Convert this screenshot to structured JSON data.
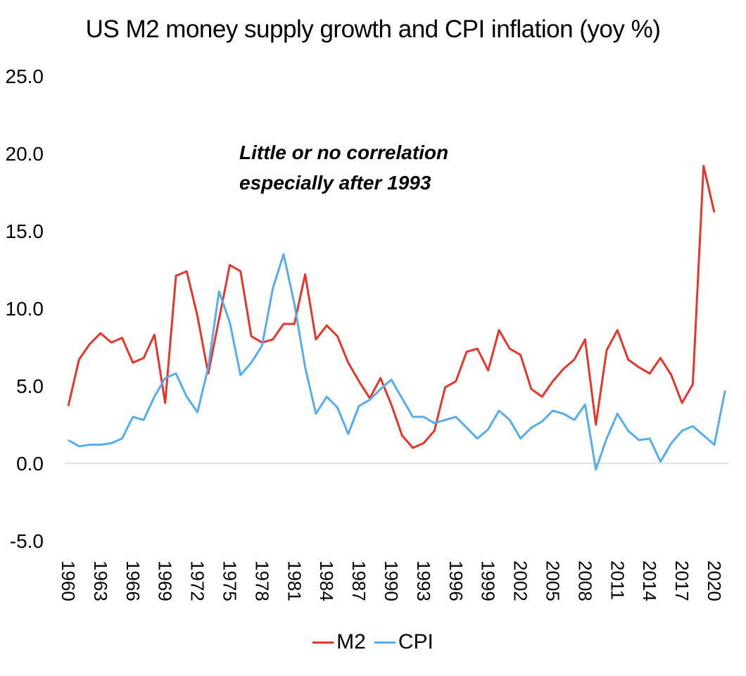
{
  "chart_data": {
    "type": "line",
    "title": "US M2 money supply growth and CPI inflation (yoy %)",
    "annotation": [
      "Little or no correlation",
      "especially after 1993"
    ],
    "ylim": [
      -5,
      25
    ],
    "yticks": [
      "25.0",
      "20.0",
      "15.0",
      "10.0",
      "5.0",
      "0.0",
      "-5.0"
    ],
    "x": [
      1960,
      1961,
      1962,
      1963,
      1964,
      1965,
      1966,
      1967,
      1968,
      1969,
      1970,
      1971,
      1972,
      1973,
      1974,
      1975,
      1976,
      1977,
      1978,
      1979,
      1980,
      1981,
      1982,
      1983,
      1984,
      1985,
      1986,
      1987,
      1988,
      1989,
      1990,
      1991,
      1992,
      1993,
      1994,
      1995,
      1996,
      1997,
      1998,
      1999,
      2000,
      2001,
      2002,
      2003,
      2004,
      2005,
      2006,
      2007,
      2008,
      2009,
      2010,
      2011,
      2012,
      2013,
      2014,
      2015,
      2016,
      2017,
      2018,
      2019,
      2020,
      2021
    ],
    "xtick_labels": [
      "1960",
      "1963",
      "1966",
      "1969",
      "1972",
      "1975",
      "1978",
      "1981",
      "1984",
      "1987",
      "1990",
      "1993",
      "1996",
      "1999",
      "2002",
      "2005",
      "2008",
      "2011",
      "2014",
      "2017",
      "2020"
    ],
    "grid": false,
    "legend_position": "bottom",
    "series": [
      {
        "name": "M2",
        "color": "#e8352c",
        "values": [
          3.7,
          6.7,
          7.7,
          8.4,
          7.8,
          8.1,
          6.5,
          6.8,
          8.3,
          3.9,
          12.1,
          12.4,
          9.5,
          5.8,
          9.3,
          12.8,
          12.4,
          8.2,
          7.8,
          8.0,
          9.0,
          9.0,
          12.2,
          8.0,
          8.9,
          8.2,
          6.5,
          5.3,
          4.2,
          5.5,
          3.8,
          1.8,
          1.0,
          1.3,
          2.1,
          4.9,
          5.3,
          7.2,
          7.4,
          6.0,
          8.6,
          7.4,
          7.0,
          4.8,
          4.3,
          5.3,
          6.1,
          6.7,
          8.0,
          2.5,
          7.3,
          8.6,
          6.7,
          6.2,
          5.8,
          6.8,
          5.7,
          3.9,
          5.1,
          19.2,
          16.2,
          null
        ]
      },
      {
        "name": "CPI",
        "color": "#55acee",
        "values": [
          1.5,
          1.1,
          1.2,
          1.2,
          1.3,
          1.6,
          3.0,
          2.8,
          4.3,
          5.5,
          5.8,
          4.3,
          3.3,
          6.2,
          11.1,
          9.1,
          5.7,
          6.5,
          7.6,
          11.3,
          13.5,
          10.3,
          6.2,
          3.2,
          4.3,
          3.6,
          1.9,
          3.7,
          4.1,
          4.8,
          5.4,
          4.2,
          3.0,
          3.0,
          2.6,
          2.8,
          3.0,
          2.3,
          1.6,
          2.2,
          3.4,
          2.8,
          1.6,
          2.3,
          2.7,
          3.4,
          3.2,
          2.8,
          3.8,
          -0.4,
          1.6,
          3.2,
          2.1,
          1.5,
          1.6,
          0.1,
          1.3,
          2.1,
          2.4,
          1.8,
          1.2,
          4.7
        ]
      }
    ]
  }
}
